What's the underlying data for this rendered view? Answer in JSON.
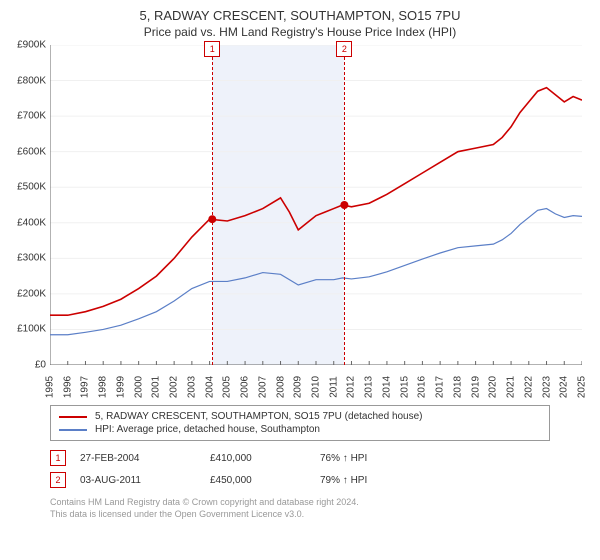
{
  "title": "5, RADWAY CRESCENT, SOUTHAMPTON, SO15 7PU",
  "subtitle": "Price paid vs. HM Land Registry's House Price Index (HPI)",
  "chart": {
    "background_color": "#ffffff",
    "grid_color": "#f0f0f0",
    "axis_color": "#666666",
    "shade_color": "#eef2fa",
    "y": {
      "min": 0,
      "max": 900,
      "step": 100,
      "prefix": "£",
      "suffix": "K",
      "ticks": [
        "£0",
        "£100K",
        "£200K",
        "£300K",
        "£400K",
        "£500K",
        "£600K",
        "£700K",
        "£800K",
        "£900K"
      ]
    },
    "x": {
      "min": 1995,
      "max": 2025,
      "labels": [
        "1995",
        "1996",
        "1997",
        "1998",
        "1999",
        "2000",
        "2001",
        "2002",
        "2003",
        "2004",
        "2005",
        "2006",
        "2007",
        "2008",
        "2009",
        "2010",
        "2011",
        "2012",
        "2013",
        "2014",
        "2015",
        "2016",
        "2017",
        "2018",
        "2019",
        "2020",
        "2021",
        "2022",
        "2023",
        "2024",
        "2025"
      ]
    },
    "series": [
      {
        "name": "5, RADWAY CRESCENT, SOUTHAMPTON, SO15 7PU (detached house)",
        "color": "#cc0000",
        "width": 1.6,
        "data": [
          [
            1995,
            140
          ],
          [
            1996,
            140
          ],
          [
            1997,
            150
          ],
          [
            1998,
            165
          ],
          [
            1999,
            185
          ],
          [
            2000,
            215
          ],
          [
            2001,
            250
          ],
          [
            2002,
            300
          ],
          [
            2003,
            360
          ],
          [
            2004,
            410
          ],
          [
            2005,
            405
          ],
          [
            2006,
            420
          ],
          [
            2007,
            440
          ],
          [
            2008,
            470
          ],
          [
            2008.5,
            430
          ],
          [
            2009,
            380
          ],
          [
            2009.5,
            400
          ],
          [
            2010,
            420
          ],
          [
            2010.5,
            430
          ],
          [
            2011,
            440
          ],
          [
            2011.5,
            450
          ],
          [
            2012,
            445
          ],
          [
            2013,
            455
          ],
          [
            2014,
            480
          ],
          [
            2015,
            510
          ],
          [
            2016,
            540
          ],
          [
            2017,
            570
          ],
          [
            2018,
            600
          ],
          [
            2019,
            610
          ],
          [
            2020,
            620
          ],
          [
            2020.5,
            640
          ],
          [
            2021,
            670
          ],
          [
            2021.5,
            710
          ],
          [
            2022,
            740
          ],
          [
            2022.5,
            770
          ],
          [
            2023,
            780
          ],
          [
            2023.5,
            760
          ],
          [
            2024,
            740
          ],
          [
            2024.5,
            755
          ],
          [
            2025,
            745
          ]
        ]
      },
      {
        "name": "HPI: Average price, detached house, Southampton",
        "color": "#5b7fc7",
        "width": 1.2,
        "data": [
          [
            1995,
            85
          ],
          [
            1996,
            85
          ],
          [
            1997,
            92
          ],
          [
            1998,
            100
          ],
          [
            1999,
            112
          ],
          [
            2000,
            130
          ],
          [
            2001,
            150
          ],
          [
            2002,
            180
          ],
          [
            2003,
            215
          ],
          [
            2004,
            235
          ],
          [
            2005,
            235
          ],
          [
            2006,
            245
          ],
          [
            2007,
            260
          ],
          [
            2008,
            255
          ],
          [
            2009,
            225
          ],
          [
            2010,
            240
          ],
          [
            2011,
            240
          ],
          [
            2011.5,
            245
          ],
          [
            2012,
            242
          ],
          [
            2013,
            248
          ],
          [
            2014,
            262
          ],
          [
            2015,
            280
          ],
          [
            2016,
            298
          ],
          [
            2017,
            315
          ],
          [
            2018,
            330
          ],
          [
            2019,
            335
          ],
          [
            2020,
            340
          ],
          [
            2020.5,
            352
          ],
          [
            2021,
            370
          ],
          [
            2021.5,
            395
          ],
          [
            2022,
            415
          ],
          [
            2022.5,
            435
          ],
          [
            2023,
            440
          ],
          [
            2023.5,
            425
          ],
          [
            2024,
            415
          ],
          [
            2024.5,
            420
          ],
          [
            2025,
            418
          ]
        ]
      }
    ],
    "sales": [
      {
        "n": "1",
        "year": 2004.15,
        "price_k": 410,
        "color": "#cc0000",
        "date": "27-FEB-2004",
        "price_label": "£410,000",
        "pct": "76% ↑ HPI"
      },
      {
        "n": "2",
        "year": 2011.6,
        "price_k": 450,
        "color": "#cc0000",
        "date": "03-AUG-2011",
        "price_label": "£450,000",
        "pct": "79% ↑ HPI"
      }
    ],
    "point_marker": {
      "r": 4,
      "fill": "#cc0000"
    }
  },
  "footer": {
    "line1": "Contains HM Land Registry data © Crown copyright and database right 2024.",
    "line2": "This data is licensed under the Open Government Licence v3.0."
  }
}
